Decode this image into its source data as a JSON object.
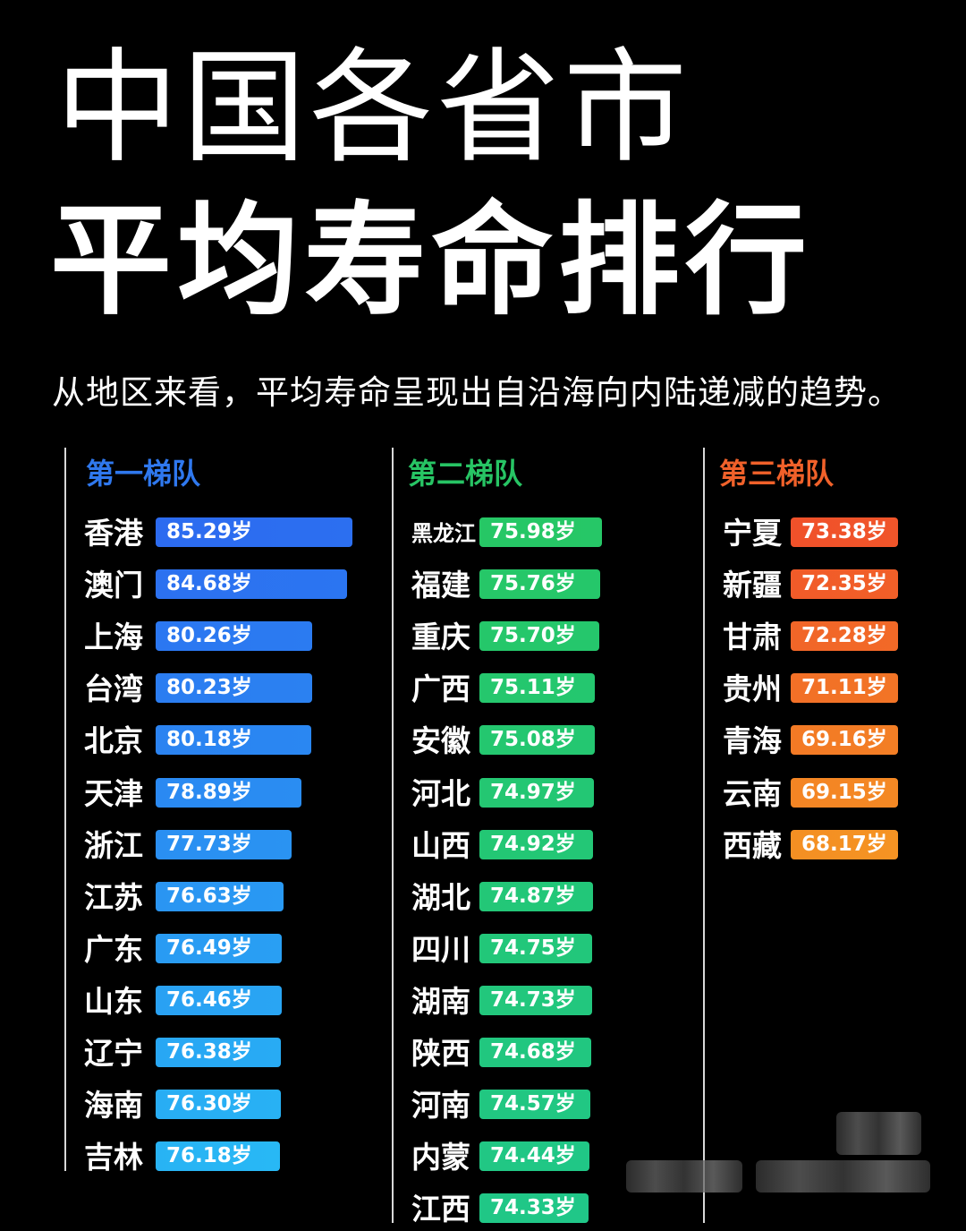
{
  "title_line1": "中国各省市",
  "title_line2": "平均寿命排行",
  "subtitle": "从地区来看，平均寿命呈现出自沿海向内陆递减的趋势。",
  "unit": "岁",
  "colors": {
    "tier1": "#2f78ee",
    "tier2": "#27c464",
    "tier3": "#f0612a"
  },
  "chart_data": {
    "type": "bar",
    "orientation": "horizontal",
    "title": "中国各省市 平均寿命排行",
    "subtitle": "从地区来看，平均寿命呈现出自沿海向内陆递减的趋势。",
    "unit": "岁",
    "tiers": [
      {
        "label": "第一梯队",
        "color": "#2f78ee",
        "items": [
          {
            "name": "香港",
            "value": 85.29
          },
          {
            "name": "澳门",
            "value": 84.68
          },
          {
            "name": "上海",
            "value": 80.26
          },
          {
            "name": "台湾",
            "value": 80.23
          },
          {
            "name": "北京",
            "value": 80.18
          },
          {
            "name": "天津",
            "value": 78.89
          },
          {
            "name": "浙江",
            "value": 77.73
          },
          {
            "name": "江苏",
            "value": 76.63
          },
          {
            "name": "广东",
            "value": 76.49
          },
          {
            "name": "山东",
            "value": 76.46
          },
          {
            "name": "辽宁",
            "value": 76.38
          },
          {
            "name": "海南",
            "value": 76.3
          },
          {
            "name": "吉林",
            "value": 76.18
          }
        ]
      },
      {
        "label": "第二梯队",
        "color": "#27c464",
        "items": [
          {
            "name": "黑龙江",
            "value": 75.98
          },
          {
            "name": "福建",
            "value": 75.76
          },
          {
            "name": "重庆",
            "value": 75.7
          },
          {
            "name": "广西",
            "value": 75.11
          },
          {
            "name": "安徽",
            "value": 75.08
          },
          {
            "name": "河北",
            "value": 74.97
          },
          {
            "name": "山西",
            "value": 74.92
          },
          {
            "name": "湖北",
            "value": 74.87
          },
          {
            "name": "四川",
            "value": 74.75
          },
          {
            "name": "湖南",
            "value": 74.73
          },
          {
            "name": "陕西",
            "value": 74.68
          },
          {
            "name": "河南",
            "value": 74.57
          },
          {
            "name": "内蒙",
            "value": 74.44
          },
          {
            "name": "江西",
            "value": 74.33
          }
        ]
      },
      {
        "label": "第三梯队",
        "color": "#f0612a",
        "items": [
          {
            "name": "宁夏",
            "value": 73.38
          },
          {
            "name": "新疆",
            "value": 72.35
          },
          {
            "name": "甘肃",
            "value": 72.28
          },
          {
            "name": "贵州",
            "value": 71.11
          },
          {
            "name": "青海",
            "value": 69.16
          },
          {
            "name": "云南",
            "value": 69.15
          },
          {
            "name": "西藏",
            "value": 68.17
          }
        ]
      }
    ]
  }
}
